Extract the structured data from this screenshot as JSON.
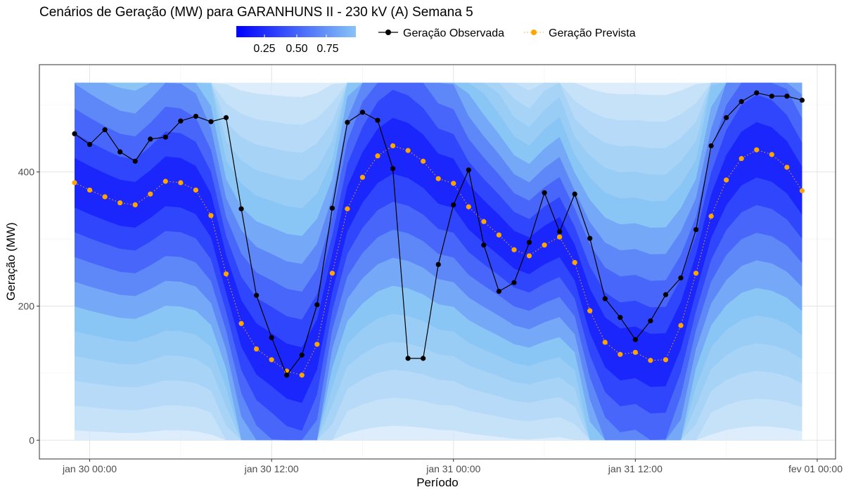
{
  "chart_data": {
    "type": "line",
    "title": "Cenários de Geração (MW) para GARANHUNS II - 230 kV (A) Semana 5",
    "xlabel": "Período",
    "ylabel": "Geração (MW)",
    "ylim": [
      -28,
      560
    ],
    "x_ticks": [
      "jan 30 00:00",
      "jan 30 12:00",
      "jan 31 00:00",
      "jan 31 12:00",
      "fev 01 00:00"
    ],
    "y_ticks": [
      0,
      200,
      400
    ],
    "grid": true,
    "colorbar": {
      "ticks": [
        "0.25",
        "0.50",
        "0.75"
      ],
      "color_low": "#0000ff",
      "color_high": "#87c4f5"
    },
    "series": [
      {
        "name": "Geração Observada",
        "color": "#000000",
        "style": "solid-with-points",
        "values": [
          457,
          441,
          463,
          430,
          416,
          449,
          452,
          476,
          483,
          475,
          481,
          345,
          216,
          153,
          97,
          127,
          202,
          346,
          474,
          489,
          477,
          405,
          122,
          122,
          262,
          351,
          403,
          291,
          222,
          235,
          295,
          369,
          311,
          367,
          301,
          211,
          183,
          150,
          178,
          217,
          242,
          314,
          439,
          481,
          505,
          518,
          513,
          513,
          507
        ]
      },
      {
        "name": "Geração Prevista",
        "color": "#ffa500",
        "style": "dotted-with-points",
        "values": [
          384,
          373,
          363,
          354,
          351,
          367,
          386,
          384,
          373,
          335,
          248,
          174,
          136,
          120,
          103,
          97,
          143,
          249,
          345,
          392,
          424,
          439,
          432,
          416,
          390,
          383,
          348,
          326,
          306,
          284,
          275,
          291,
          303,
          265,
          193,
          146,
          128,
          131,
          119,
          120,
          171,
          249,
          334,
          388,
          420,
          433,
          426,
          407,
          372
        ]
      }
    ]
  }
}
